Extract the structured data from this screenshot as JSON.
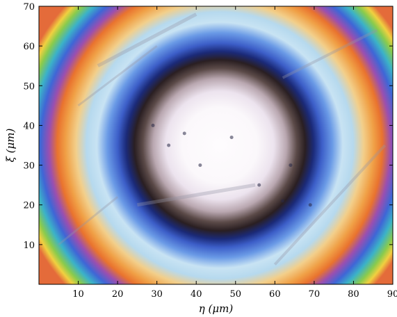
{
  "chart_data": {
    "type": "heatmap",
    "title": "",
    "xlabel": "η (μm)",
    "ylabel": "ξ (μm)",
    "xlim": [
      0,
      90
    ],
    "ylim": [
      0,
      70
    ],
    "x_ticks": [
      10,
      20,
      30,
      40,
      50,
      60,
      70,
      80,
      90
    ],
    "y_ticks": [
      10,
      20,
      30,
      40,
      50,
      60,
      70
    ],
    "grid": false,
    "image": {
      "kind": "optical micrograph with concentric interference fringes",
      "center": [
        46,
        35
      ],
      "ring_radii_um": {
        "bright_core": 17,
        "dark_ring_inner": 21,
        "dark_ring_outer": 27,
        "blue_halo": 31,
        "orange_fringe": 38,
        "rainbow_edge": 45
      },
      "colors": {
        "core": "#fdfbfd",
        "core_edge": "#cfc4d4",
        "dark_ring": "#2a1f22",
        "navy_ring": "#1b2a78",
        "blue_halo": "#5c8ee8",
        "pale_halo": "#c8e3f3",
        "orange_fringe": "#f0a046",
        "outer_violet": "#7a3fa8"
      }
    }
  }
}
